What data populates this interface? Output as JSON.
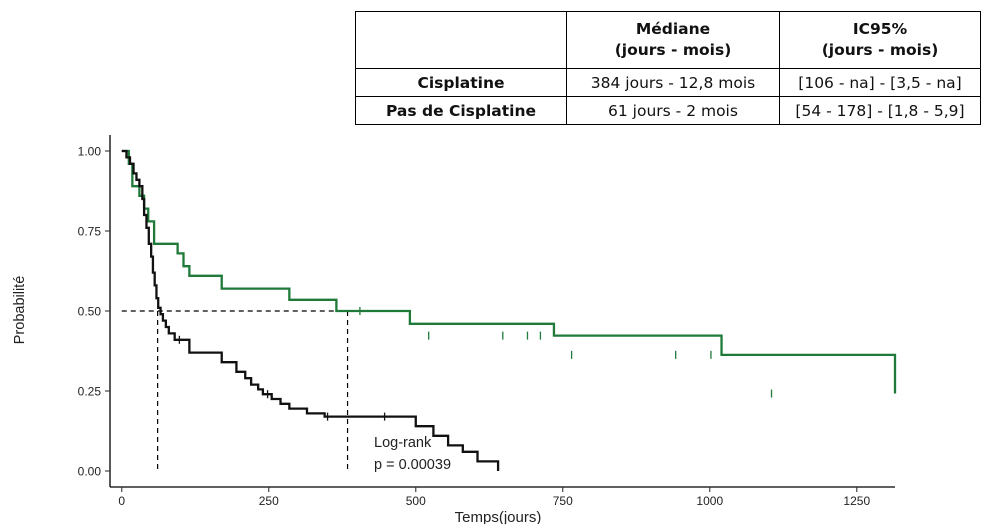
{
  "table": {
    "headers": [
      "",
      "Médiane\n(jours - mois)",
      "IC95%\n(jours - mois)"
    ],
    "rows": [
      {
        "label": "Cisplatine",
        "median": "384 jours - 12,8 mois",
        "ci": "[106 - na] - [3,5 - na]"
      },
      {
        "label": "Pas de Cisplatine",
        "median": "61 jours - 2 mois",
        "ci": "[54 - 178] - [1,8 - 5,9]"
      }
    ]
  },
  "chart_data": {
    "type": "line",
    "subtype": "kaplan-meier step",
    "xlabel": "Temps(jours)",
    "ylabel": "Probabilité",
    "xlim": [
      -20,
      1315
    ],
    "ylim": [
      -0.05,
      1.05
    ],
    "x_ticks": [
      0,
      250,
      500,
      750,
      1000,
      1250
    ],
    "y_ticks": [
      "0.00",
      "0.25",
      "0.50",
      "0.75",
      "1.00"
    ],
    "grid": false,
    "annotation": [
      "Log-rank",
      "p = 0.00039"
    ],
    "median_line": {
      "y": 0.5,
      "x_values": [
        61,
        384
      ]
    },
    "series": [
      {
        "color": "#1f7a3a",
        "x": [
          0,
          12,
          18,
          30,
          38,
          45,
          55,
          95,
          105,
          115,
          170,
          285,
          365,
          490,
          735,
          1020,
          1315
        ],
        "y": [
          1.0,
          0.96,
          0.89,
          0.86,
          0.82,
          0.78,
          0.71,
          0.68,
          0.64,
          0.61,
          0.57,
          0.535,
          0.5,
          0.46,
          0.423,
          0.363,
          0.242
        ],
        "censored": [
          [
            405,
            0.5
          ],
          [
            522,
            0.423
          ],
          [
            648,
            0.423
          ],
          [
            690,
            0.423
          ],
          [
            712,
            0.423
          ],
          [
            765,
            0.363
          ],
          [
            942,
            0.363
          ],
          [
            1002,
            0.363
          ],
          [
            1105,
            0.242
          ]
        ]
      },
      {
        "color": "#111111",
        "x": [
          0,
          8,
          14,
          20,
          25,
          30,
          35,
          38,
          42,
          46,
          50,
          53,
          56,
          59,
          62,
          66,
          70,
          75,
          80,
          90,
          115,
          170,
          195,
          210,
          220,
          232,
          240,
          255,
          270,
          285,
          315,
          345,
          500,
          530,
          555,
          580,
          605,
          640
        ],
        "y": [
          1.0,
          0.98,
          0.96,
          0.93,
          0.91,
          0.89,
          0.85,
          0.8,
          0.76,
          0.71,
          0.67,
          0.62,
          0.58,
          0.54,
          0.51,
          0.49,
          0.47,
          0.45,
          0.43,
          0.41,
          0.37,
          0.34,
          0.31,
          0.29,
          0.27,
          0.255,
          0.24,
          0.225,
          0.21,
          0.195,
          0.18,
          0.17,
          0.14,
          0.11,
          0.08,
          0.06,
          0.03,
          0.0
        ],
        "censored": [
          [
            98,
            0.41
          ],
          [
            248,
            0.24
          ],
          [
            350,
            0.17
          ],
          [
            447,
            0.17
          ]
        ]
      }
    ]
  }
}
